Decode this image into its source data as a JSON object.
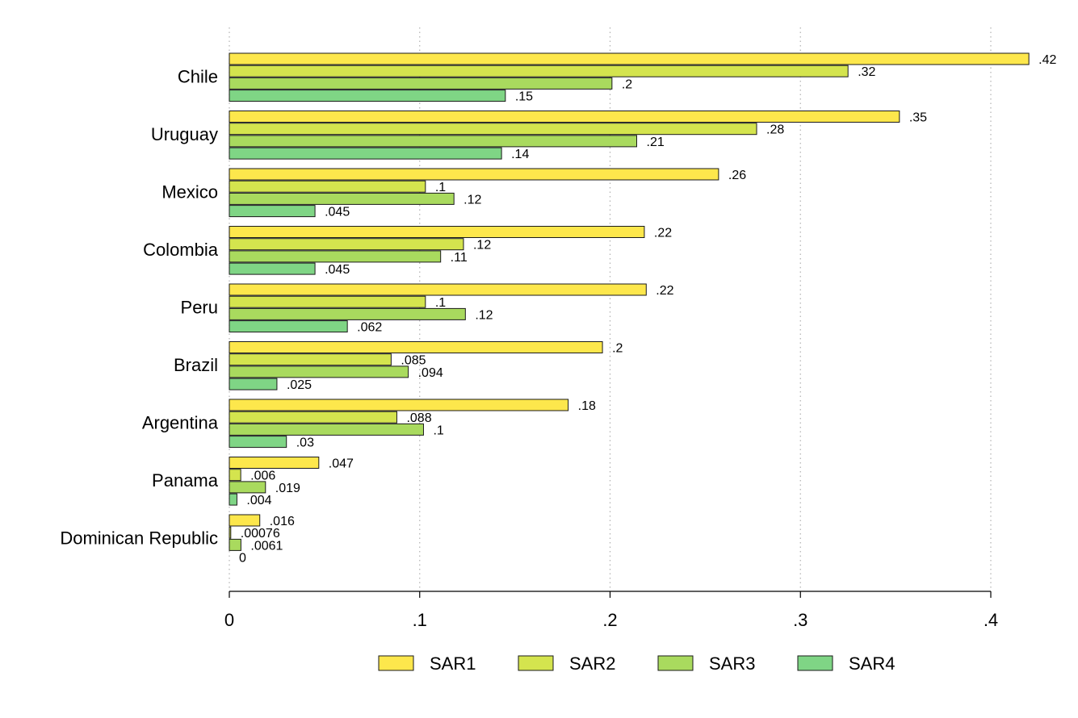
{
  "chart_data": {
    "type": "bar",
    "orientation": "horizontal",
    "title": "",
    "xlabel": "",
    "ylabel": "",
    "xlim": [
      0,
      0.4
    ],
    "grid": "vertical-dotted",
    "legend_position": "bottom",
    "ticks": [
      {
        "value": 0,
        "label": "0"
      },
      {
        "value": 0.1,
        "label": ".1"
      },
      {
        "value": 0.2,
        "label": ".2"
      },
      {
        "value": 0.3,
        "label": ".3"
      },
      {
        "value": 0.4,
        "label": ".4"
      }
    ],
    "categories": [
      "Chile",
      "Uruguay",
      "Mexico",
      "Colombia",
      "Peru",
      "Brazil",
      "Argentina",
      "Panama",
      "Dominican Republic"
    ],
    "series": [
      {
        "name": "SAR1",
        "color": "#FDE74C",
        "values": [
          0.42,
          0.352,
          0.257,
          0.218,
          0.219,
          0.196,
          0.178,
          0.047,
          0.016
        ],
        "labels": [
          ".42",
          ".35",
          ".26",
          ".22",
          ".22",
          ".2",
          ".18",
          ".047",
          ".016"
        ]
      },
      {
        "name": "SAR2",
        "color": "#D4E44E",
        "values": [
          0.325,
          0.277,
          0.103,
          0.123,
          0.103,
          0.085,
          0.088,
          0.006,
          0.00076
        ],
        "labels": [
          ".32",
          ".28",
          ".1",
          ".12",
          ".1",
          ".085",
          ".088",
          ".006",
          ".00076"
        ]
      },
      {
        "name": "SAR3",
        "color": "#A9DA5E",
        "values": [
          0.201,
          0.214,
          0.118,
          0.111,
          0.124,
          0.094,
          0.102,
          0.019,
          0.0061
        ],
        "labels": [
          ".2",
          ".21",
          ".12",
          ".11",
          ".12",
          ".094",
          ".1",
          ".019",
          ".0061"
        ]
      },
      {
        "name": "SAR4",
        "color": "#7FD585",
        "values": [
          0.145,
          0.143,
          0.045,
          0.045,
          0.062,
          0.025,
          0.03,
          0.004,
          0
        ],
        "labels": [
          ".15",
          ".14",
          ".045",
          ".045",
          ".062",
          ".025",
          ".03",
          ".004",
          "0"
        ]
      }
    ]
  }
}
